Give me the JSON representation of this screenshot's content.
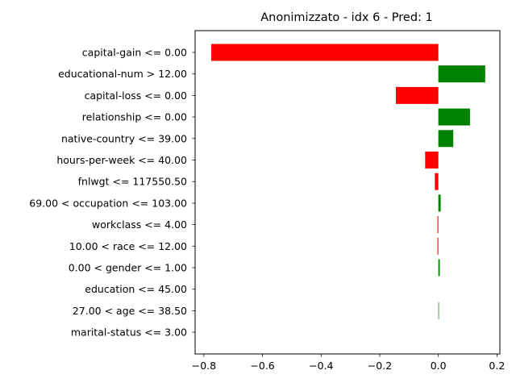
{
  "chart_data": {
    "type": "bar",
    "orientation": "horizontal",
    "title": "Anonimizzato - idx 6 - Pred: 1",
    "xlabel": "",
    "ylabel": "",
    "xlim": [
      -0.83,
      0.21
    ],
    "xticks": [
      -0.8,
      -0.6,
      -0.4,
      -0.2,
      0.0,
      0.2
    ],
    "xtick_labels": [
      "−0.8",
      "−0.6",
      "−0.4",
      "−0.2",
      "0.0",
      "0.2"
    ],
    "grid": false,
    "positive_color": "#008000",
    "negative_color": "#ff0000",
    "categories": [
      "capital-gain <= 0.00",
      "educational-num > 12.00",
      "capital-loss <= 0.00",
      "relationship <= 0.00",
      "native-country <= 39.00",
      "hours-per-week <= 40.00",
      "fnlwgt <= 117550.50",
      "69.00 < occupation <= 103.00",
      "workclass <= 4.00",
      "10.00 < race <= 12.00",
      "0.00 < gender <= 1.00",
      "education <= 45.00",
      "27.00 < age <= 38.50",
      "marital-status <= 3.00"
    ],
    "values": [
      -0.775,
      0.16,
      -0.145,
      0.108,
      0.051,
      -0.045,
      -0.012,
      0.008,
      -0.003,
      -0.003,
      0.005,
      0.0,
      0.002,
      0.0
    ]
  }
}
